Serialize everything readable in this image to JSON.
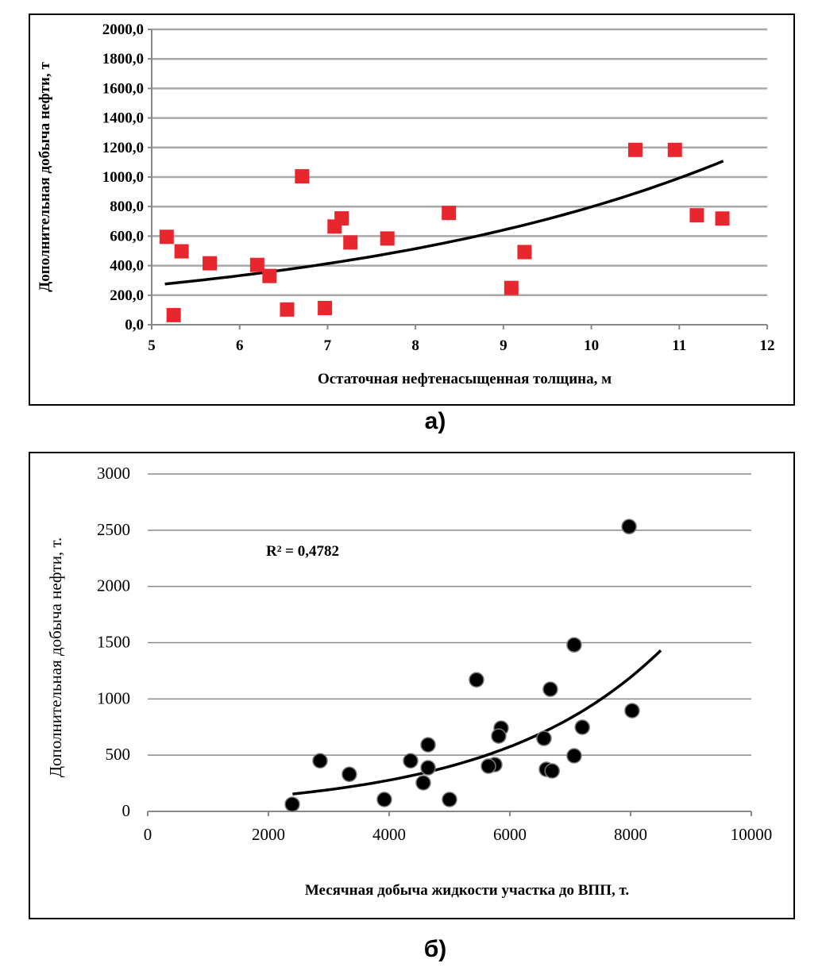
{
  "chart_data": [
    {
      "type": "scatter",
      "panel_label": "а)",
      "title": "",
      "xlabel": "Остаточная нефтенасыщенная толщина, м",
      "ylabel": "Дополнительная добыча нефти, т",
      "xlim": [
        5,
        12
      ],
      "ylim": [
        0,
        2000
      ],
      "xticks": [
        5,
        6,
        7,
        8,
        9,
        10,
        11,
        12
      ],
      "xtick_labels": [
        "5",
        "6",
        "7",
        "8",
        "9",
        "10",
        "11",
        "12"
      ],
      "yticks": [
        0,
        200,
        400,
        600,
        800,
        1000,
        1200,
        1400,
        1600,
        1800,
        2000
      ],
      "ytick_labels": [
        "0,0",
        "200,0",
        "400,0",
        "600,0",
        "800,0",
        "1000,0",
        "1200,0",
        "1400,0",
        "1600,0",
        "1800,0",
        "2000,0"
      ],
      "grid": "horizontal",
      "marker": "square",
      "marker_color": "#e8262e",
      "points": [
        [
          5.17,
          595
        ],
        [
          5.25,
          65
        ],
        [
          5.34,
          497
        ],
        [
          5.66,
          416
        ],
        [
          6.2,
          405
        ],
        [
          6.34,
          330
        ],
        [
          6.54,
          103
        ],
        [
          6.71,
          1005
        ],
        [
          6.97,
          113
        ],
        [
          7.08,
          665
        ],
        [
          7.16,
          720
        ],
        [
          7.26,
          557
        ],
        [
          7.68,
          584
        ],
        [
          8.38,
          757
        ],
        [
          9.09,
          249
        ],
        [
          9.24,
          492
        ],
        [
          10.5,
          1184
        ],
        [
          10.95,
          1184
        ],
        [
          11.2,
          741
        ],
        [
          11.49,
          719
        ]
      ],
      "trendline": {
        "type": "exponential",
        "a": 89.3,
        "b": 0.219,
        "x_range": [
          5.15,
          11.5
        ]
      }
    },
    {
      "type": "scatter",
      "panel_label": "б)",
      "title": "",
      "xlabel": "Месячная добыча жидкости участка до ВПП, т.",
      "ylabel": "Дополнительная добыча нефти, т.",
      "annotation": "R² = 0,4782",
      "xlim": [
        0,
        10000
      ],
      "ylim": [
        0,
        3000
      ],
      "xticks": [
        0,
        2000,
        4000,
        6000,
        8000,
        10000
      ],
      "xtick_labels": [
        "0",
        "2000",
        "4000",
        "6000",
        "8000",
        "10000"
      ],
      "yticks": [
        0,
        500,
        1000,
        1500,
        2000,
        2500,
        3000
      ],
      "ytick_labels": [
        "0",
        "500",
        "1000",
        "1500",
        "2000",
        "2500",
        "3000"
      ],
      "grid": "horizontal",
      "marker": "circle",
      "marker_color": "#000000",
      "points": [
        [
          2395,
          63
        ],
        [
          2855,
          450
        ],
        [
          3340,
          330
        ],
        [
          3920,
          106
        ],
        [
          4355,
          450
        ],
        [
          4645,
          592
        ],
        [
          4645,
          388
        ],
        [
          4565,
          254
        ],
        [
          5000,
          106
        ],
        [
          5447,
          1170
        ],
        [
          5855,
          740
        ],
        [
          5815,
          670
        ],
        [
          5750,
          416
        ],
        [
          5645,
          402
        ],
        [
          6670,
          1086
        ],
        [
          6565,
          649
        ],
        [
          6605,
          374
        ],
        [
          6700,
          360
        ],
        [
          7065,
          1481
        ],
        [
          7200,
          748
        ],
        [
          7065,
          494
        ],
        [
          7975,
          2532
        ],
        [
          8025,
          896
        ]
      ],
      "trendline": {
        "type": "exponential",
        "a": 64.6,
        "b": 0.0003645,
        "x_range": [
          2400,
          8500
        ]
      }
    }
  ]
}
